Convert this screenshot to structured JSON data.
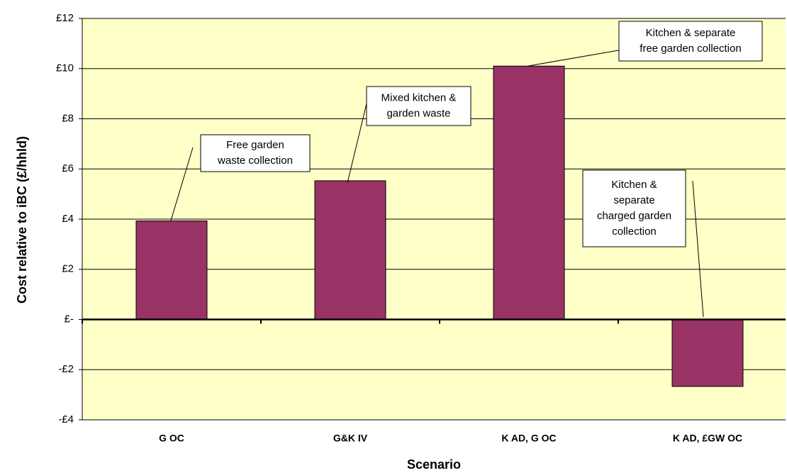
{
  "chart_data": {
    "type": "bar",
    "y_label": "Cost relative to iBC (£/hhld)",
    "x_label": "Scenario",
    "categories": [
      "G OC",
      "G&K IV",
      "K AD, G OC",
      "K AD, £GW OC"
    ],
    "values": [
      3.93,
      5.53,
      10.1,
      -2.67
    ],
    "color": "#993366",
    "ylim": [
      -4,
      12
    ],
    "yticks": [
      {
        "value": -4,
        "label": "-£4"
      },
      {
        "value": -2,
        "label": "-£2"
      },
      {
        "value": 0,
        "label": "£-"
      },
      {
        "value": 2,
        "label": "£2"
      },
      {
        "value": 4,
        "label": "£4"
      },
      {
        "value": 6,
        "label": "£6"
      },
      {
        "value": 8,
        "label": "£8"
      },
      {
        "value": 10,
        "label": "£10"
      },
      {
        "value": 12,
        "label": "£12"
      }
    ],
    "grid": true,
    "annotations": [
      {
        "lines": [
          "Free garden",
          "waste collection"
        ]
      },
      {
        "lines": [
          "Mixed kitchen &",
          "garden waste"
        ]
      },
      {
        "lines": [
          "Kitchen & separate",
          "free garden collection"
        ]
      },
      {
        "lines": [
          "Kitchen &",
          "separate",
          "charged garden",
          "collection"
        ]
      }
    ]
  }
}
